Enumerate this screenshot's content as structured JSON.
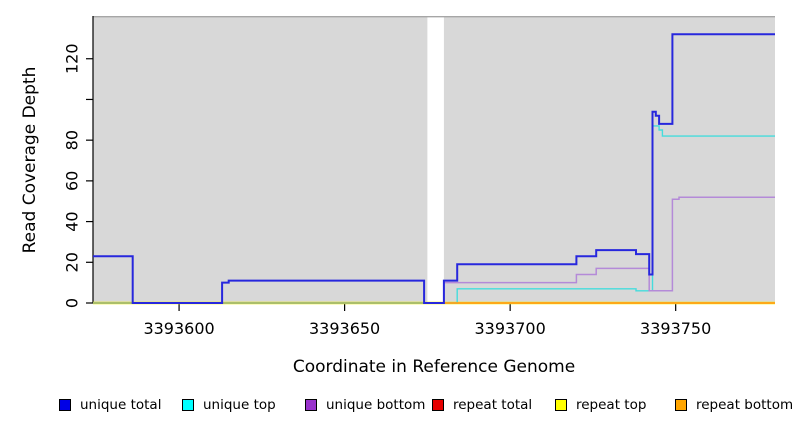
{
  "axes": {
    "ylabel": "Read Coverage Depth",
    "xlabel": "Coordinate in Reference Genome"
  },
  "chart_data": {
    "type": "line",
    "subtype": "step-after coverage profile",
    "title": "",
    "xlabel": "Coordinate in Reference Genome",
    "ylabel": "Read Coverage Depth",
    "xlim": [
      3393574,
      3393780
    ],
    "ylim": [
      0,
      141
    ],
    "grid": false,
    "plot_background": "#d8d8d8",
    "plot_top_border_color": "#a6a6a6",
    "masked_region": {
      "x_start": 3393675,
      "x_end": 3393680,
      "color": "#ffffff"
    },
    "x_ticks": [
      {
        "v": 3393600,
        "label": "3393600"
      },
      {
        "v": 3393650,
        "label": "3393650"
      },
      {
        "v": 3393700,
        "label": "3393700"
      },
      {
        "v": 3393750,
        "label": "3393750"
      }
    ],
    "y_ticks": [
      {
        "v": 0,
        "label": "0"
      },
      {
        "v": 20,
        "label": "20"
      },
      {
        "v": 40,
        "label": "40"
      },
      {
        "v": 60,
        "label": "60"
      },
      {
        "v": 80,
        "label": "80"
      },
      {
        "v": 100,
        "label": ""
      },
      {
        "v": 120,
        "label": "120"
      }
    ],
    "series": [
      {
        "name": "repeat_total",
        "legend_label": "repeat total",
        "color": "#e60000",
        "width": 1.4,
        "points": [
          [
            3393574,
            0
          ],
          [
            3393780,
            0
          ]
        ]
      },
      {
        "name": "repeat_top",
        "legend_label": "repeat top",
        "color": "#f2f200",
        "width": 2.4,
        "points": [
          [
            3393574,
            0
          ],
          [
            3393780,
            0
          ]
        ]
      },
      {
        "name": "unique_top",
        "legend_label": "unique top",
        "color": "#45dcdc",
        "width": 1.4,
        "points": [
          [
            3393574,
            0
          ],
          [
            3393684,
            7
          ],
          [
            3393738,
            6
          ],
          [
            3393743,
            87
          ],
          [
            3393745,
            85
          ],
          [
            3393746,
            82
          ],
          [
            3393780,
            82
          ]
        ]
      },
      {
        "name": "unique_bottom",
        "legend_label": "unique bottom",
        "color": "#b48ad8",
        "width": 1.5,
        "points": [
          [
            3393574,
            0
          ],
          [
            3393680,
            10
          ],
          [
            3393720,
            14
          ],
          [
            3393726,
            17
          ],
          [
            3393742,
            6
          ],
          [
            3393749,
            51
          ],
          [
            3393751,
            52
          ],
          [
            3393780,
            52
          ]
        ]
      },
      {
        "name": "repeat_bottom",
        "legend_label": "repeat bottom",
        "color": "#ff9e1b",
        "width": 1.8,
        "points": [
          [
            3393574,
            0
          ],
          [
            3393780,
            0
          ]
        ]
      },
      {
        "name": "baseline_overlap",
        "legend_label": "",
        "color": "#86cf86",
        "width": 1.3,
        "note": "unique-top line drawn over repeat-top line at depth 0 (renders green) left of masked region",
        "points": [
          [
            3393574,
            0
          ],
          [
            3393675,
            0
          ]
        ]
      },
      {
        "name": "unique_total",
        "legend_label": "unique total",
        "color": "#2727dd",
        "width": 2,
        "points": [
          [
            3393574,
            23
          ],
          [
            3393586,
            0
          ],
          [
            3393613,
            10
          ],
          [
            3393615,
            11
          ],
          [
            3393674,
            0
          ],
          [
            3393680,
            11
          ],
          [
            3393684,
            19
          ],
          [
            3393720,
            23
          ],
          [
            3393726,
            26
          ],
          [
            3393738,
            24
          ],
          [
            3393742,
            14
          ],
          [
            3393743,
            94
          ],
          [
            3393744,
            92
          ],
          [
            3393745,
            88
          ],
          [
            3393749,
            132
          ],
          [
            3393780,
            132
          ]
        ]
      }
    ],
    "legend": [
      {
        "label": "unique total",
        "color": "#0000e6"
      },
      {
        "label": "unique top",
        "color": "#00ffff"
      },
      {
        "label": "unique bottom",
        "color": "#9932cc"
      },
      {
        "label": "repeat total",
        "color": "#e60000"
      },
      {
        "label": "repeat top",
        "color": "#ffff00"
      },
      {
        "label": "repeat bottom",
        "color": "#ffa500"
      }
    ]
  }
}
